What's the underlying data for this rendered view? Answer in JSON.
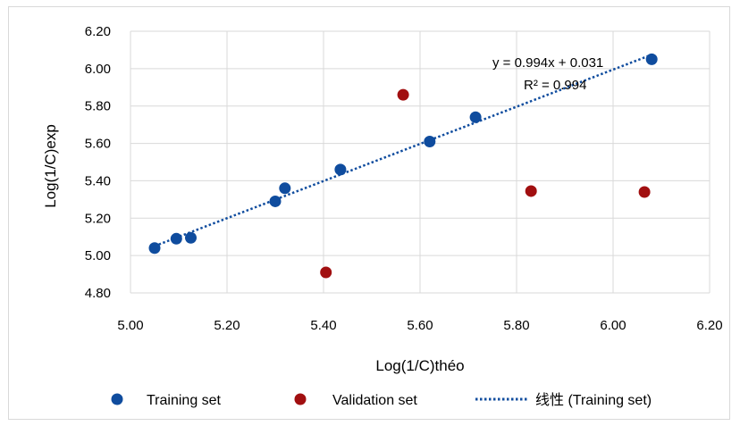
{
  "chart_data": {
    "type": "scatter",
    "xlabel": "Log(1/C)théo",
    "ylabel": "Log(1/C)exp",
    "xlim": [
      5.0,
      6.2
    ],
    "ylim": [
      4.8,
      6.2
    ],
    "xticks": [
      "5.00",
      "5.20",
      "5.40",
      "5.60",
      "5.80",
      "6.00",
      "6.20"
    ],
    "yticks": [
      "4.80",
      "5.00",
      "5.20",
      "5.40",
      "5.60",
      "5.80",
      "6.00",
      "6.20"
    ],
    "grid": true,
    "legend_position": "bottom",
    "series": [
      {
        "name": "Training set",
        "color": "#0f4c9e",
        "marker": "circle",
        "points": [
          {
            "x": 5.05,
            "y": 5.04
          },
          {
            "x": 5.095,
            "y": 5.09
          },
          {
            "x": 5.125,
            "y": 5.095
          },
          {
            "x": 5.3,
            "y": 5.29
          },
          {
            "x": 5.32,
            "y": 5.36
          },
          {
            "x": 5.435,
            "y": 5.46
          },
          {
            "x": 5.62,
            "y": 5.61
          },
          {
            "x": 5.715,
            "y": 5.74
          },
          {
            "x": 6.08,
            "y": 6.05
          }
        ]
      },
      {
        "name": "Validation set",
        "color": "#a10f10",
        "marker": "circle",
        "points": [
          {
            "x": 5.405,
            "y": 4.91
          },
          {
            "x": 5.565,
            "y": 5.86
          },
          {
            "x": 5.83,
            "y": 5.345
          },
          {
            "x": 6.065,
            "y": 5.34
          }
        ]
      }
    ],
    "trendline": {
      "name": "线性 (Training set)",
      "type": "linear",
      "slope": 0.994,
      "intercept": 0.031,
      "x_range": [
        5.05,
        6.08
      ],
      "color": "#0f4c9e",
      "style": "dotted",
      "equation_label": "y = 0.994x + 0.031",
      "r2_label": "R² = 0.994"
    }
  }
}
